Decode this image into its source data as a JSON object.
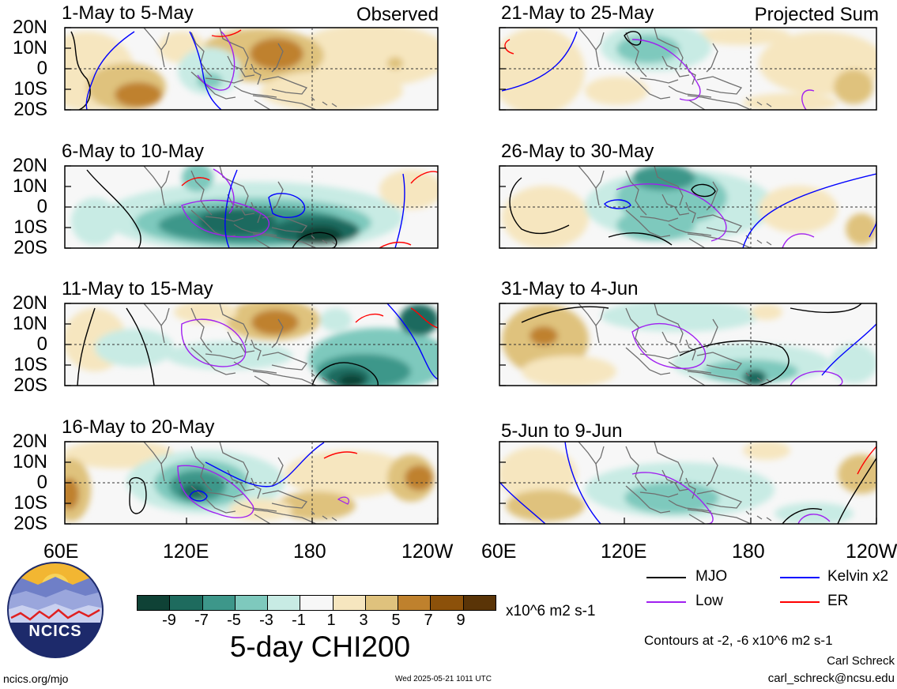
{
  "panels": [
    {
      "title": "1-May to 5-May",
      "label": "Observed"
    },
    {
      "title": "6-May to 10-May",
      "label": ""
    },
    {
      "title": "11-May to 15-May",
      "label": ""
    },
    {
      "title": "16-May to 20-May",
      "label": ""
    },
    {
      "title": "21-May to 25-May",
      "label": "Projected Sum"
    },
    {
      "title": "26-May to 30-May",
      "label": ""
    },
    {
      "title": "31-May to 4-Jun",
      "label": ""
    },
    {
      "title": "5-Jun to 9-Jun",
      "label": ""
    }
  ],
  "lat_ticks": [
    "20N",
    "10N",
    "0",
    "10S",
    "20S"
  ],
  "lon_ticks": [
    "60E",
    "120E",
    "180",
    "120W"
  ],
  "colorbar": {
    "ticks": [
      "-9",
      "-7",
      "-5",
      "-3",
      "-1",
      "1",
      "3",
      "5",
      "7",
      "9"
    ],
    "colors": [
      "#0f4236",
      "#1e6b5e",
      "#3d978a",
      "#7ec9bd",
      "#c8ebe4",
      "#f7f7f7",
      "#f6e6bf",
      "#dfc27d",
      "#bf812d",
      "#8c510a",
      "#5a3407"
    ],
    "units": "x10^6 m2 s-1",
    "title": "5-day CHI200"
  },
  "legend": [
    {
      "name": "MJO",
      "color": "#000000"
    },
    {
      "name": "Kelvin x2",
      "color": "#0000ff"
    },
    {
      "name": "Low",
      "color": "#a020f0"
    },
    {
      "name": "ER",
      "color": "#ff0000"
    }
  ],
  "contour_note": "Contours at -2, -6 x10^6 m2 s-1",
  "logo_text": "NCICS",
  "footer": {
    "url": "ncics.org/mjo",
    "timestamp": "Wed 2025-05-21 1011 UTC",
    "author": "Carl Schreck",
    "email": "carl_schreck@ncsu.edu"
  }
}
